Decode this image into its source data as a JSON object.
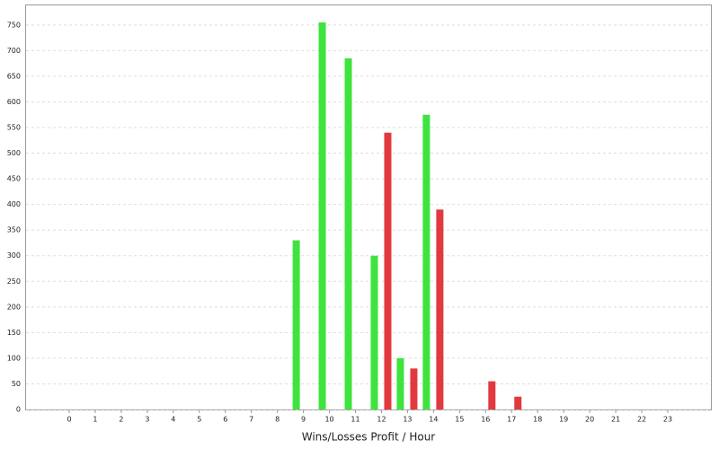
{
  "chart_data": {
    "type": "bar",
    "x_label": "Wins/Losses Profit / Hour",
    "categories": [
      "0",
      "1",
      "2",
      "3",
      "4",
      "5",
      "6",
      "7",
      "8",
      "9",
      "10",
      "11",
      "12",
      "13",
      "14",
      "15",
      "16",
      "17",
      "18",
      "19",
      "20",
      "21",
      "22",
      "23"
    ],
    "series": [
      {
        "color": "#3ee33e",
        "values": [
          0,
          0,
          0,
          0,
          0,
          0,
          0,
          0,
          0,
          330,
          755,
          685,
          300,
          100,
          575,
          0,
          0,
          0,
          0,
          0,
          0,
          0,
          0,
          0
        ]
      },
      {
        "color": "#e2393f",
        "values": [
          0,
          0,
          0,
          0,
          0,
          0,
          0,
          0,
          0,
          0,
          0,
          0,
          540,
          80,
          390,
          0,
          55,
          25,
          0,
          0,
          0,
          0,
          0,
          0
        ]
      }
    ],
    "ylim": [
      0,
      790
    ],
    "yticks": [
      0,
      50,
      100,
      150,
      200,
      250,
      300,
      350,
      400,
      450,
      500,
      550,
      600,
      650,
      700,
      750
    ],
    "grid": true
  }
}
